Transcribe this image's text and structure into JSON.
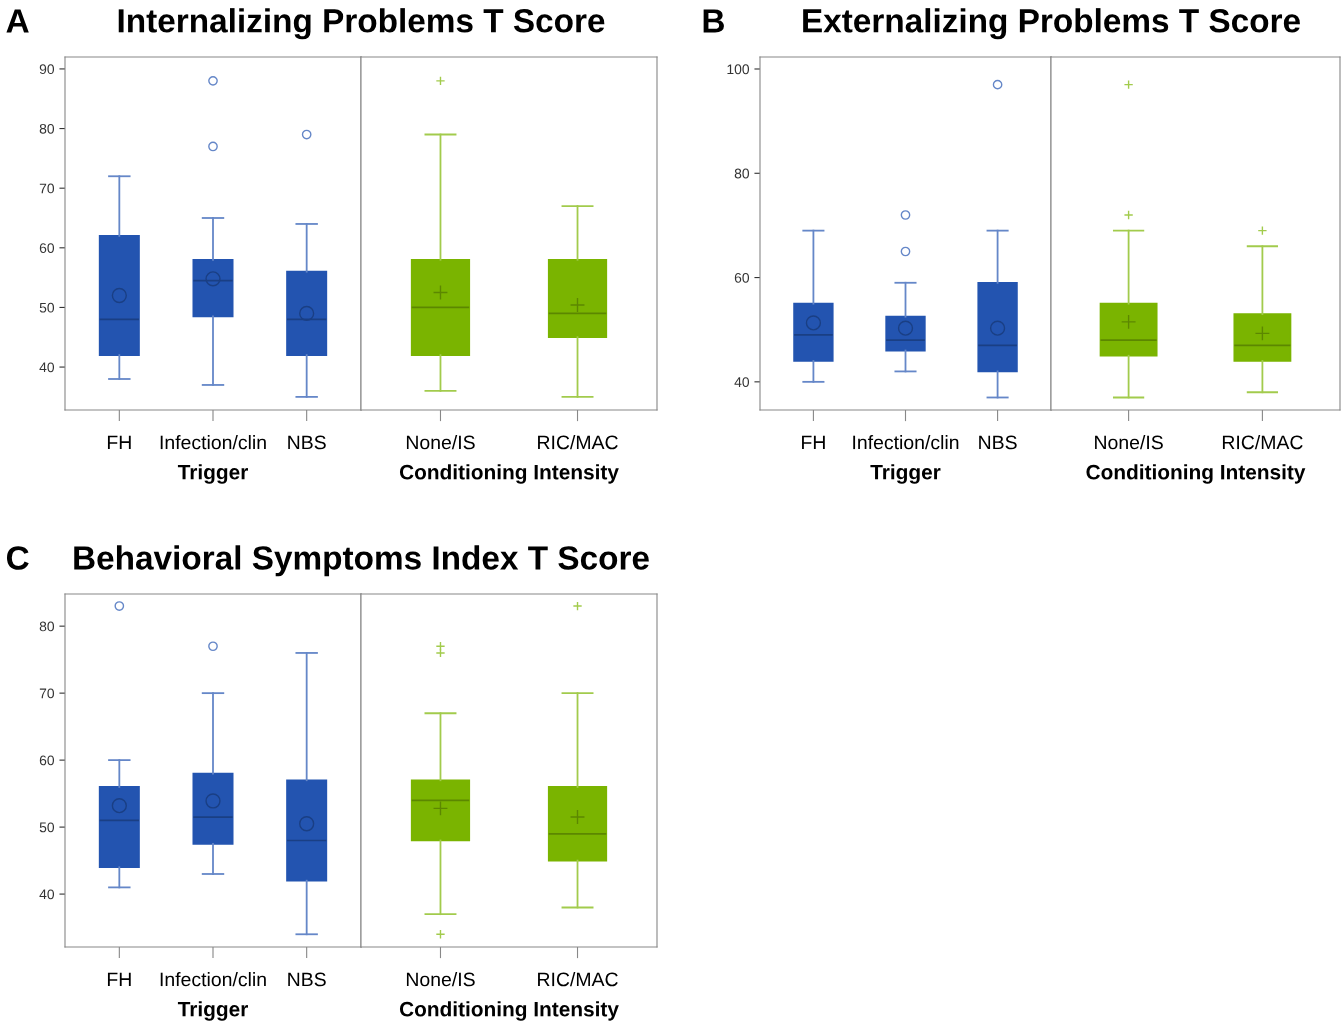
{
  "chart_data": [
    {
      "type": "box",
      "title": "Internalizing Problems T Score",
      "annotations": [
        "A"
      ],
      "xlabel": "Trigger",
      "categories": [
        "FH",
        "Infection/clin",
        "NBS"
      ],
      "color": "#2354b0",
      "marker": "circle",
      "ylim": [
        32.8,
        92
      ],
      "yticks": [
        40,
        50,
        60,
        70,
        80,
        90
      ],
      "boxes": [
        {
          "low": 38,
          "q1": 42,
          "median": 48,
          "q3": 62,
          "high": 72,
          "mean": 52
        },
        {
          "low": 37,
          "q1": 48.5,
          "median": 54.5,
          "q3": 58,
          "high": 65,
          "mean": 54.8,
          "outliers": [
            77,
            88
          ]
        },
        {
          "low": 35,
          "q1": 42,
          "median": 48,
          "q3": 56,
          "high": 64,
          "mean": 49,
          "outliers": [
            79
          ]
        }
      ]
    },
    {
      "type": "box",
      "xlabel": "Conditioning Intensity",
      "categories": [
        "None/IS",
        "RIC/MAC"
      ],
      "color": "#7ab400",
      "marker": "cross",
      "ylim": [
        32.8,
        92
      ],
      "tick_labels": "x",
      "boxes": [
        {
          "low": 36,
          "q1": 42,
          "median": 50,
          "q3": 58,
          "high": 79,
          "mean": 52.5,
          "outliers": [
            88
          ]
        },
        {
          "low": 35,
          "q1": 45,
          "median": 49,
          "q3": 58,
          "high": 67,
          "mean": 50.4
        }
      ]
    },
    {
      "type": "box",
      "title": "Externalizing Problems T Score",
      "annotations": [
        "B"
      ],
      "xlabel": "Trigger",
      "categories": [
        "FH",
        "Infection/clin",
        "NBS"
      ],
      "color": "#2354b0",
      "marker": "circle",
      "ylim": [
        34.6,
        102.3
      ],
      "yticks": [
        40,
        60,
        80,
        100
      ],
      "boxes": [
        {
          "low": 40,
          "q1": 44,
          "median": 49,
          "q3": 55,
          "high": 69,
          "mean": 51.3
        },
        {
          "low": 42,
          "q1": 46,
          "median": 48,
          "q3": 52.5,
          "high": 59,
          "mean": 50.3,
          "outliers": [
            65,
            72
          ]
        },
        {
          "low": 37,
          "q1": 42,
          "median": 47,
          "q3": 59,
          "high": 69,
          "mean": 50.3,
          "outliers": [
            97
          ]
        }
      ]
    },
    {
      "type": "box",
      "xlabel": "Conditioning Intensity",
      "categories": [
        "None/IS",
        "RIC/MAC"
      ],
      "color": "#7ab400",
      "marker": "cross",
      "ylim": [
        34.6,
        102.3
      ],
      "tick_labels": "x",
      "boxes": [
        {
          "low": 37,
          "q1": 45,
          "median": 48,
          "q3": 55,
          "high": 69,
          "mean": 51.5,
          "outliers": [
            72,
            97
          ]
        },
        {
          "low": 38,
          "q1": 44,
          "median": 47,
          "q3": 53,
          "high": 66,
          "mean": 49.3,
          "outliers": [
            69
          ]
        }
      ]
    },
    {
      "type": "box",
      "title": "Behavioral Symptoms Index T Score",
      "annotations": [
        "C"
      ],
      "xlabel": "Trigger",
      "categories": [
        "FH",
        "Infection/clin",
        "NBS"
      ],
      "color": "#2354b0",
      "marker": "circle",
      "ylim": [
        32.1,
        84.8
      ],
      "yticks": [
        40,
        50,
        60,
        70,
        80
      ],
      "boxes": [
        {
          "low": 41,
          "q1": 44,
          "median": 51,
          "q3": 56,
          "high": 60,
          "mean": 53.2,
          "outliers": [
            83
          ]
        },
        {
          "low": 43,
          "q1": 47.5,
          "median": 51.5,
          "q3": 58,
          "high": 70,
          "mean": 53.9,
          "outliers": [
            77
          ]
        },
        {
          "low": 34,
          "q1": 42,
          "median": 48,
          "q3": 57,
          "high": 76,
          "mean": 50.5
        }
      ]
    },
    {
      "type": "box",
      "xlabel": "Conditioning Intensity",
      "categories": [
        "None/IS",
        "RIC/MAC"
      ],
      "color": "#7ab400",
      "marker": "cross",
      "ylim": [
        32.1,
        84.8
      ],
      "tick_labels": "x",
      "boxes": [
        {
          "low": 37,
          "q1": 48,
          "median": 54,
          "q3": 57,
          "high": 67,
          "mean": 52.8,
          "outliers": [
            34,
            76,
            77
          ]
        },
        {
          "low": 38,
          "q1": 45,
          "median": 49,
          "q3": 56,
          "high": 70,
          "mean": 51.5,
          "outliers": [
            83
          ]
        }
      ]
    }
  ]
}
